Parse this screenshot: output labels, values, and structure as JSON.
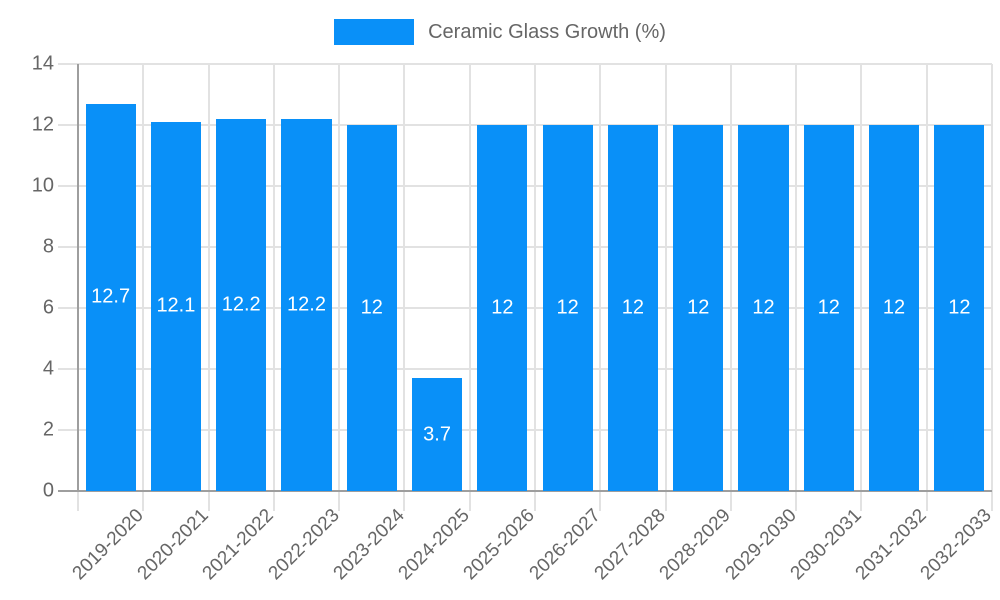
{
  "chart_data": {
    "type": "bar",
    "title": "",
    "legend": {
      "label": "Ceramic Glass Growth (%)",
      "position": "top"
    },
    "categories": [
      "2019-2020",
      "2020-2021",
      "2021-2022",
      "2022-2023",
      "2023-2024",
      "2024-2025",
      "2025-2026",
      "2026-2027",
      "2027-2028",
      "2028-2029",
      "2029-2030",
      "2030-2031",
      "2031-2032",
      "2032-2033"
    ],
    "values": [
      12.7,
      12.1,
      12.2,
      12.2,
      12,
      3.7,
      12,
      12,
      12,
      12,
      12,
      12,
      12,
      12
    ],
    "value_labels": [
      "12.7",
      "12.1",
      "12.2",
      "12.2",
      "12",
      "3.7",
      "12",
      "12",
      "12",
      "12",
      "12",
      "12",
      "12",
      "12"
    ],
    "xlabel": "",
    "ylabel": "",
    "ylim": [
      0,
      14
    ],
    "yticks": [
      0,
      2,
      4,
      6,
      8,
      10,
      12,
      14
    ],
    "grid": true,
    "legend_position": "top-center",
    "colors": {
      "bar": "#0990f8",
      "axis_text": "#666666",
      "grid_line": "#e2e2e2",
      "axis_line": "#9e9e9e",
      "value_label": "#ffffff",
      "background": "#ffffff"
    }
  }
}
